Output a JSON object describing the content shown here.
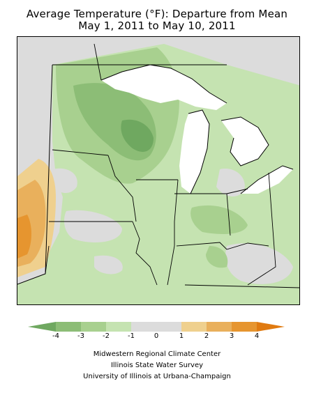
{
  "title_line1": "Average Temperature (°F): Departure from Mean",
  "title_line2": "May 1, 2011 to May 10, 2011",
  "legend": {
    "ticks": [
      "-4",
      "-3",
      "-2",
      "-1",
      "0",
      "1",
      "2",
      "3",
      "4"
    ],
    "colors": {
      "le_-4": "#6fa860",
      "-4_-3": "#8cbd76",
      "-3_-2": "#a8d08f",
      "-2_-1": "#c5e3b1",
      "-1_1": "#dcdcdc",
      "1_2": "#efd08e",
      "2_3": "#e9b05c",
      "3_4": "#e6952f",
      "ge_4": "#e07a10"
    }
  },
  "credits": {
    "line1": "Midwestern Regional Climate Center",
    "line2": "Illinois State Water Survey",
    "line3": "University of Illinois at Urbana-Champaign"
  }
}
